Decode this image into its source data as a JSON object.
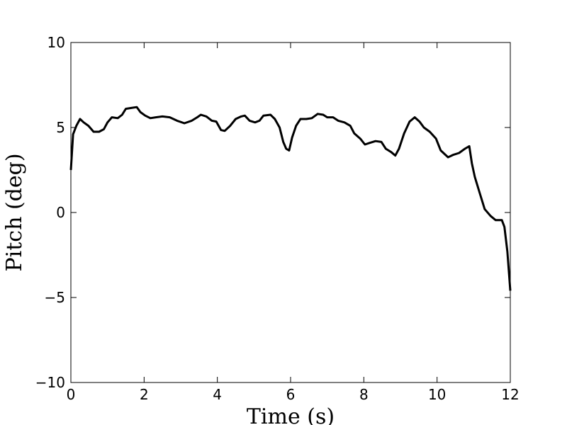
{
  "chart_data": {
    "type": "line",
    "xlabel": "Time (s)",
    "ylabel": "Pitch (deg)",
    "x": [
      0,
      0.06,
      0.15,
      0.25,
      0.35,
      0.48,
      0.62,
      0.77,
      0.9,
      1.0,
      1.12,
      1.28,
      1.4,
      1.5,
      1.65,
      1.8,
      1.9,
      2.03,
      2.17,
      2.32,
      2.5,
      2.7,
      2.9,
      3.1,
      3.3,
      3.45,
      3.55,
      3.7,
      3.85,
      3.97,
      4.1,
      4.2,
      4.35,
      4.5,
      4.65,
      4.75,
      4.88,
      5.03,
      5.15,
      5.26,
      5.45,
      5.57,
      5.7,
      5.8,
      5.88,
      5.96,
      6.04,
      6.15,
      6.27,
      6.43,
      6.58,
      6.74,
      6.89,
      7.0,
      7.16,
      7.3,
      7.47,
      7.63,
      7.74,
      7.9,
      8.03,
      8.17,
      8.32,
      8.48,
      8.6,
      8.75,
      8.86,
      8.96,
      9.1,
      9.25,
      9.39,
      9.52,
      9.64,
      9.8,
      9.97,
      10.1,
      10.3,
      10.45,
      10.6,
      10.76,
      10.88,
      10.95,
      11.03,
      11.15,
      11.3,
      11.46,
      11.6,
      11.77,
      11.84,
      11.92,
      12.0
    ],
    "series": [
      {
        "color": "#000000",
        "values": [
          2.5,
          4.6,
          5.1,
          5.5,
          5.3,
          5.1,
          4.75,
          4.75,
          4.9,
          5.3,
          5.6,
          5.55,
          5.75,
          6.1,
          6.15,
          6.2,
          5.9,
          5.7,
          5.55,
          5.6,
          5.65,
          5.6,
          5.4,
          5.25,
          5.4,
          5.6,
          5.75,
          5.65,
          5.4,
          5.35,
          4.85,
          4.8,
          5.1,
          5.5,
          5.65,
          5.7,
          5.4,
          5.3,
          5.4,
          5.7,
          5.75,
          5.5,
          5.0,
          4.15,
          3.75,
          3.65,
          4.4,
          5.1,
          5.5,
          5.5,
          5.55,
          5.8,
          5.75,
          5.6,
          5.6,
          5.4,
          5.3,
          5.1,
          4.65,
          4.35,
          4.0,
          4.1,
          4.2,
          4.15,
          3.75,
          3.55,
          3.35,
          3.75,
          4.65,
          5.35,
          5.6,
          5.35,
          5.0,
          4.75,
          4.35,
          3.65,
          3.25,
          3.4,
          3.5,
          3.75,
          3.9,
          2.9,
          2.1,
          1.25,
          0.2,
          -0.2,
          -0.45,
          -0.45,
          -0.85,
          -2.3,
          -4.6
        ]
      }
    ],
    "xlim": [
      0,
      12
    ],
    "xticks": [
      0,
      2,
      4,
      6,
      8,
      10,
      12
    ],
    "ylim": [
      -10,
      10
    ],
    "yticks": [
      {
        "value": -10,
        "label": "−10"
      },
      {
        "value": -5,
        "label": "−5"
      },
      0,
      5,
      10
    ],
    "grid": false
  }
}
